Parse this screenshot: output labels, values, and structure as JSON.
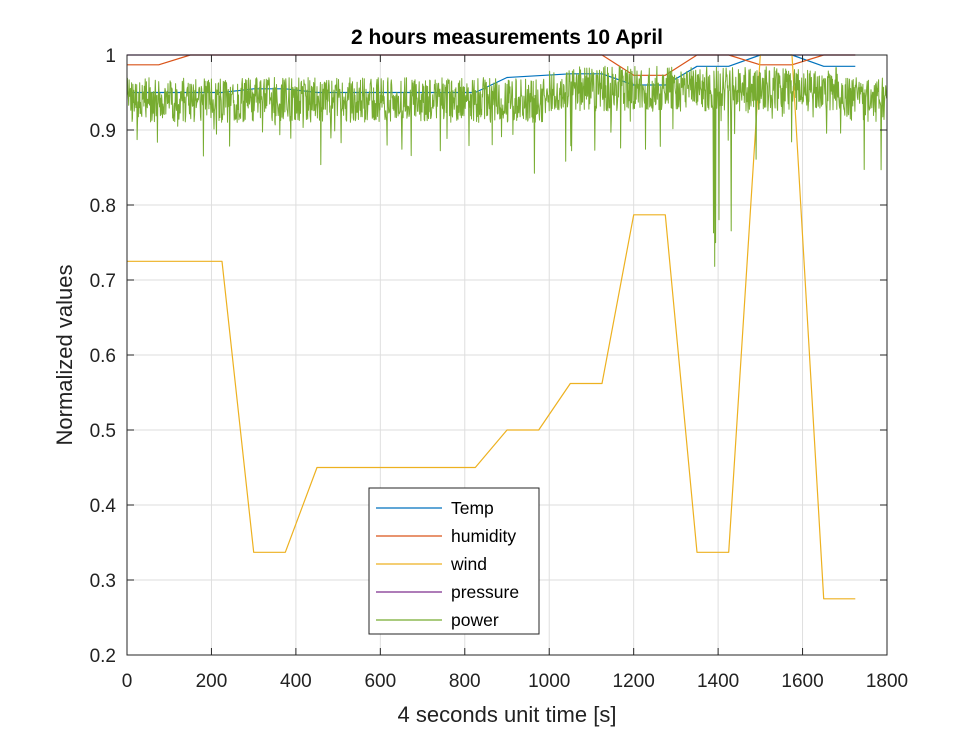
{
  "chart_data": {
    "type": "line",
    "title": "2 hours measurements 10 April",
    "xlabel": "4 seconds unit time [s]",
    "ylabel": "Normalized values",
    "xlim": [
      0,
      1800
    ],
    "ylim": [
      0.2,
      1
    ],
    "xticks": [
      0,
      200,
      400,
      600,
      800,
      1000,
      1200,
      1400,
      1600,
      1800
    ],
    "yticks": [
      0.2,
      0.3,
      0.4,
      0.5,
      0.6,
      0.7,
      0.8,
      0.9,
      1
    ],
    "ytick_labels": [
      "0.2",
      "0.3",
      "0.4",
      "0.5",
      "0.6",
      "0.7",
      "0.8",
      "0.9",
      "1"
    ],
    "grid": true,
    "legend_position": "bottom-center",
    "series": [
      {
        "name": "Temp",
        "color": "#0072BD",
        "x": [
          0,
          225,
          300,
          375,
          450,
          825,
          900,
          1050,
          1125,
          1200,
          1275,
          1350,
          1425,
          1500,
          1575,
          1650,
          1725
        ],
        "y": [
          0.95,
          0.95,
          0.955,
          0.955,
          0.95,
          0.95,
          0.97,
          0.975,
          0.975,
          0.96,
          0.96,
          0.985,
          0.985,
          1.0,
          1.0,
          0.985,
          0.985
        ]
      },
      {
        "name": "humidity",
        "color": "#D95319",
        "x": [
          0,
          75,
          150,
          1125,
          1200,
          1275,
          1350,
          1425,
          1500,
          1575,
          1650,
          1725
        ],
        "y": [
          0.987,
          0.987,
          1.0,
          1.0,
          0.973,
          0.973,
          1.0,
          1.0,
          0.987,
          0.987,
          1.0,
          1.0
        ]
      },
      {
        "name": "wind",
        "color": "#EDB120",
        "x": [
          0,
          225,
          300,
          375,
          450,
          825,
          900,
          975,
          1050,
          1125,
          1200,
          1275,
          1350,
          1425,
          1500,
          1575,
          1650,
          1725
        ],
        "y": [
          0.725,
          0.725,
          0.337,
          0.337,
          0.45,
          0.45,
          0.5,
          0.5,
          0.562,
          0.562,
          0.787,
          0.787,
          0.337,
          0.337,
          1.0,
          1.0,
          0.275,
          0.275
        ]
      },
      {
        "name": "pressure",
        "color": "#7E2F8E",
        "x": [
          0,
          1725
        ],
        "y": [
          1.0,
          1.0
        ]
      },
      {
        "name": "power",
        "color": "#77AC30",
        "x_range": [
          0,
          1800
        ],
        "mean": 0.94,
        "min": 0.7,
        "max": 1.0
      }
    ]
  }
}
